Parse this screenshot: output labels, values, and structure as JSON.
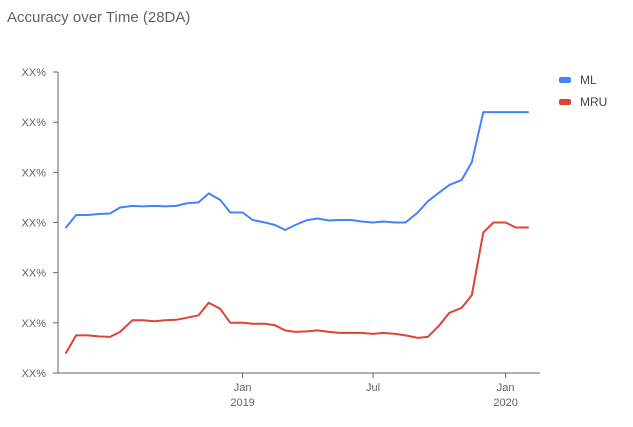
{
  "chart_data": {
    "type": "line",
    "title": "Accuracy over Time (28DA)",
    "xlabel": "",
    "ylabel": "",
    "y_tick_labels": [
      "XX%",
      "XX%",
      "XX%",
      "XX%",
      "XX%",
      "XX%",
      "XX%"
    ],
    "x_ticks": [
      {
        "label": "Jan",
        "sublabel": "2019"
      },
      {
        "label": "Jul",
        "sublabel": ""
      },
      {
        "label": "Jan",
        "sublabel": "2020"
      }
    ],
    "legend_position": "top-right",
    "grid": false,
    "ylim": [
      0,
      6
    ],
    "x": [
      "2018-05-01",
      "2018-05-15",
      "2018-06-01",
      "2018-06-15",
      "2018-07-01",
      "2018-07-15",
      "2018-08-01",
      "2018-08-15",
      "2018-09-01",
      "2018-09-15",
      "2018-10-01",
      "2018-10-15",
      "2018-11-01",
      "2018-11-15",
      "2018-12-01",
      "2018-12-15",
      "2019-01-01",
      "2019-01-15",
      "2019-02-01",
      "2019-02-15",
      "2019-03-01",
      "2019-03-15",
      "2019-04-01",
      "2019-04-15",
      "2019-05-01",
      "2019-05-15",
      "2019-06-01",
      "2019-06-15",
      "2019-07-01",
      "2019-07-15",
      "2019-08-01",
      "2019-08-15",
      "2019-09-01",
      "2019-09-15",
      "2019-10-01",
      "2019-10-15",
      "2019-11-01",
      "2019-11-15",
      "2019-12-01",
      "2019-12-15",
      "2020-01-01",
      "2020-01-15",
      "2020-02-01"
    ],
    "series": [
      {
        "name": "ML",
        "color": "#4285f4",
        "values": [
          2.9,
          3.15,
          3.15,
          3.17,
          3.18,
          3.3,
          3.33,
          3.32,
          3.33,
          3.32,
          3.33,
          3.38,
          3.4,
          3.58,
          3.45,
          3.2,
          3.2,
          3.05,
          3.0,
          2.95,
          2.85,
          2.95,
          3.05,
          3.08,
          3.04,
          3.05,
          3.05,
          3.02,
          3.0,
          3.02,
          3.0,
          3.0,
          3.2,
          3.42,
          3.6,
          3.75,
          3.85,
          4.2,
          5.2,
          5.2,
          5.2,
          5.2,
          5.2
        ]
      },
      {
        "name": "MRU",
        "color": "#db4437",
        "values": [
          0.4,
          0.75,
          0.75,
          0.73,
          0.72,
          0.82,
          1.05,
          1.05,
          1.03,
          1.05,
          1.06,
          1.1,
          1.15,
          1.4,
          1.28,
          1.0,
          1.0,
          0.98,
          0.98,
          0.95,
          0.85,
          0.82,
          0.83,
          0.85,
          0.82,
          0.8,
          0.8,
          0.8,
          0.78,
          0.8,
          0.78,
          0.75,
          0.7,
          0.72,
          0.95,
          1.2,
          1.3,
          1.55,
          2.8,
          3.0,
          3.0,
          2.9,
          2.9
        ]
      }
    ]
  }
}
